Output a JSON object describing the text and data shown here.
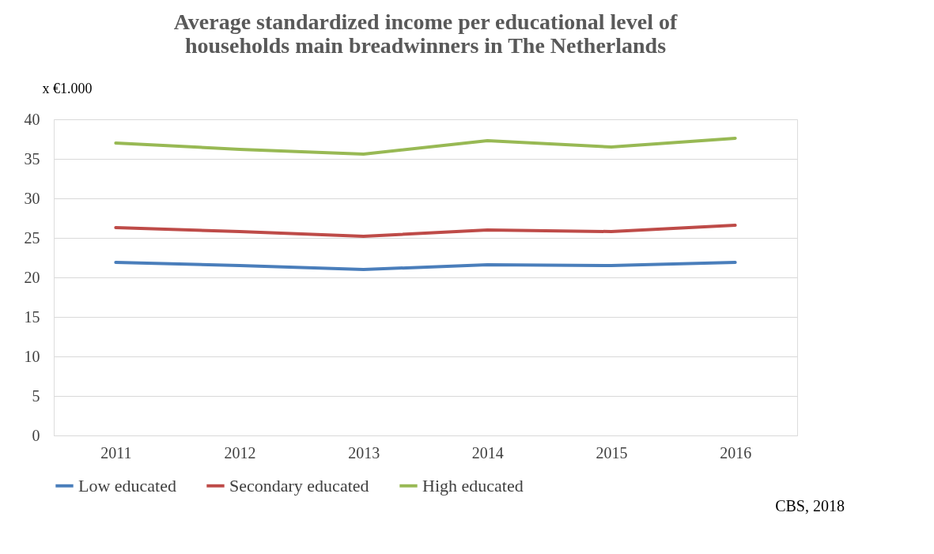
{
  "chart_data": {
    "type": "line",
    "title": [
      "Average standardized income per educational level of",
      "households main breadwinners in The Netherlands"
    ],
    "ylabel": "x €1.000",
    "categories": [
      "2011",
      "2012",
      "2013",
      "2014",
      "2015",
      "2016"
    ],
    "series": [
      {
        "name": "Low educated",
        "color": "#4a7ebb",
        "values": [
          21.9,
          21.5,
          21.0,
          21.6,
          21.5,
          21.9
        ]
      },
      {
        "name": "Secondary educated",
        "color": "#be4b48",
        "values": [
          26.3,
          25.8,
          25.2,
          26.0,
          25.8,
          26.6
        ]
      },
      {
        "name": "High educated",
        "color": "#98b954",
        "values": [
          37.0,
          36.2,
          35.6,
          37.3,
          36.5,
          37.6
        ]
      }
    ],
    "ylim": [
      0,
      40
    ],
    "yticks": [
      0,
      5,
      10,
      15,
      20,
      25,
      30,
      35,
      40
    ],
    "grid": "y",
    "legend": "bottom",
    "marker": "none",
    "line_style": "solid",
    "annotations": [
      "CBS, 2018"
    ]
  }
}
